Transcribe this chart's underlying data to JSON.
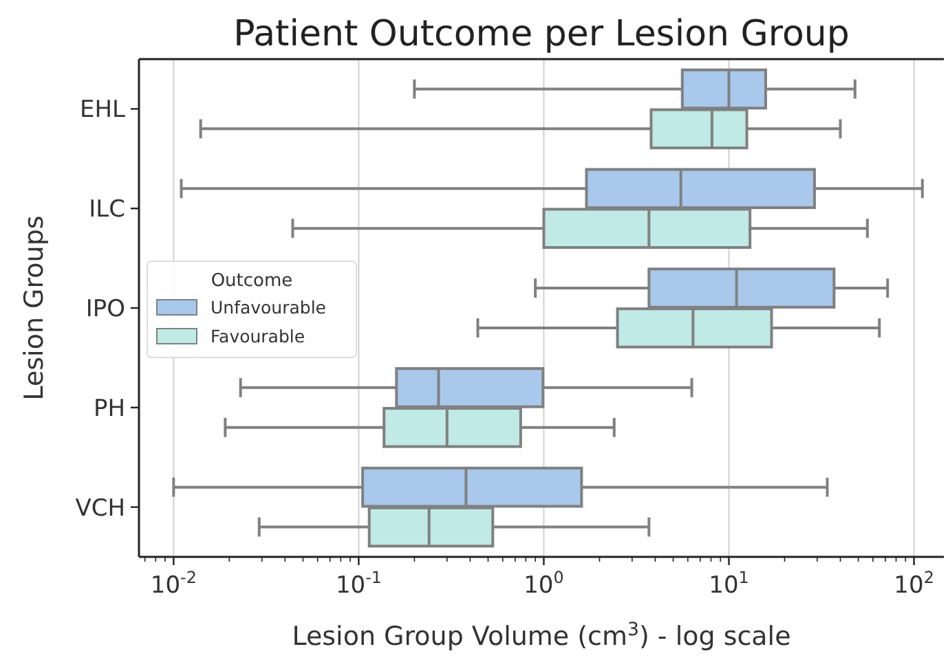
{
  "chart_data": {
    "type": "box",
    "orientation": "horizontal",
    "title": "Patient Outcome per Lesion Group",
    "xlabel": "Lesion Group Volume (cm$^{3}$) - log scale",
    "ylabel": "Lesion Groups",
    "legend_title": "Outcome",
    "legend": "left",
    "grid": "x",
    "log": "x",
    "categories": [
      "EHL",
      "ILC",
      "IPO",
      "PH",
      "VCH"
    ],
    "xlim": [
      0.0065,
      145
    ],
    "xticks": [
      {
        "value": 0.007,
        "label": null
      },
      {
        "value": 0.008,
        "label": null
      },
      {
        "value": 0.009,
        "label": null
      },
      {
        "value": 0.01,
        "label": "10$^{-2}$"
      },
      {
        "value": 0.02,
        "label": null
      },
      {
        "value": 0.03,
        "label": null
      },
      {
        "value": 0.04,
        "label": null
      },
      {
        "value": 0.05,
        "label": null
      },
      {
        "value": 0.06,
        "label": null
      },
      {
        "value": 0.07,
        "label": null
      },
      {
        "value": 0.08,
        "label": null
      },
      {
        "value": 0.09,
        "label": null
      },
      {
        "value": 0.1,
        "label": "10$^{-1}$"
      },
      {
        "value": 0.2,
        "label": null
      },
      {
        "value": 0.3,
        "label": null
      },
      {
        "value": 0.4,
        "label": null
      },
      {
        "value": 0.5,
        "label": null
      },
      {
        "value": 0.6,
        "label": null
      },
      {
        "value": 0.7,
        "label": null
      },
      {
        "value": 0.8,
        "label": null
      },
      {
        "value": 0.9,
        "label": null
      },
      {
        "value": 1,
        "label": "10$^{0}$"
      },
      {
        "value": 2,
        "label": null
      },
      {
        "value": 3,
        "label": null
      },
      {
        "value": 4,
        "label": null
      },
      {
        "value": 5,
        "label": null
      },
      {
        "value": 6,
        "label": null
      },
      {
        "value": 7,
        "label": null
      },
      {
        "value": 8,
        "label": null
      },
      {
        "value": 9,
        "label": null
      },
      {
        "value": 10,
        "label": "10$^{1}$"
      },
      {
        "value": 20,
        "label": null
      },
      {
        "value": 30,
        "label": null
      },
      {
        "value": 40,
        "label": null
      },
      {
        "value": 50,
        "label": null
      },
      {
        "value": 60,
        "label": null
      },
      {
        "value": 70,
        "label": null
      },
      {
        "value": 80,
        "label": null
      },
      {
        "value": 90,
        "label": null
      },
      {
        "value": 100,
        "label": "10$^{2}$"
      }
    ],
    "series": [
      {
        "name": "Unfavourable",
        "color": "#a8c8ec",
        "boxes": [
          {
            "low": 0.2,
            "q1": 5.6,
            "median": 10,
            "q3": 15.8,
            "high": 48
          },
          {
            "low": 0.011,
            "q1": 1.7,
            "median": 5.5,
            "q3": 29,
            "high": 111
          },
          {
            "low": 0.9,
            "q1": 3.7,
            "median": 11,
            "q3": 37,
            "high": 72
          },
          {
            "low": 0.023,
            "q1": 0.16,
            "median": 0.27,
            "q3": 0.99,
            "high": 6.3
          },
          {
            "low": 0.01,
            "q1": 0.105,
            "median": 0.38,
            "q3": 1.6,
            "high": 34
          }
        ]
      },
      {
        "name": "Favourable",
        "color": "#bfeae6",
        "boxes": [
          {
            "low": 0.014,
            "q1": 3.8,
            "median": 8.1,
            "q3": 12.5,
            "high": 40
          },
          {
            "low": 0.044,
            "q1": 1.0,
            "median": 3.7,
            "q3": 13,
            "high": 56
          },
          {
            "low": 0.44,
            "q1": 2.5,
            "median": 6.4,
            "q3": 17,
            "high": 65
          },
          {
            "low": 0.019,
            "q1": 0.137,
            "median": 0.3,
            "q3": 0.75,
            "high": 2.4
          },
          {
            "low": 0.029,
            "q1": 0.114,
            "median": 0.24,
            "q3": 0.53,
            "high": 3.7
          }
        ]
      }
    ]
  }
}
